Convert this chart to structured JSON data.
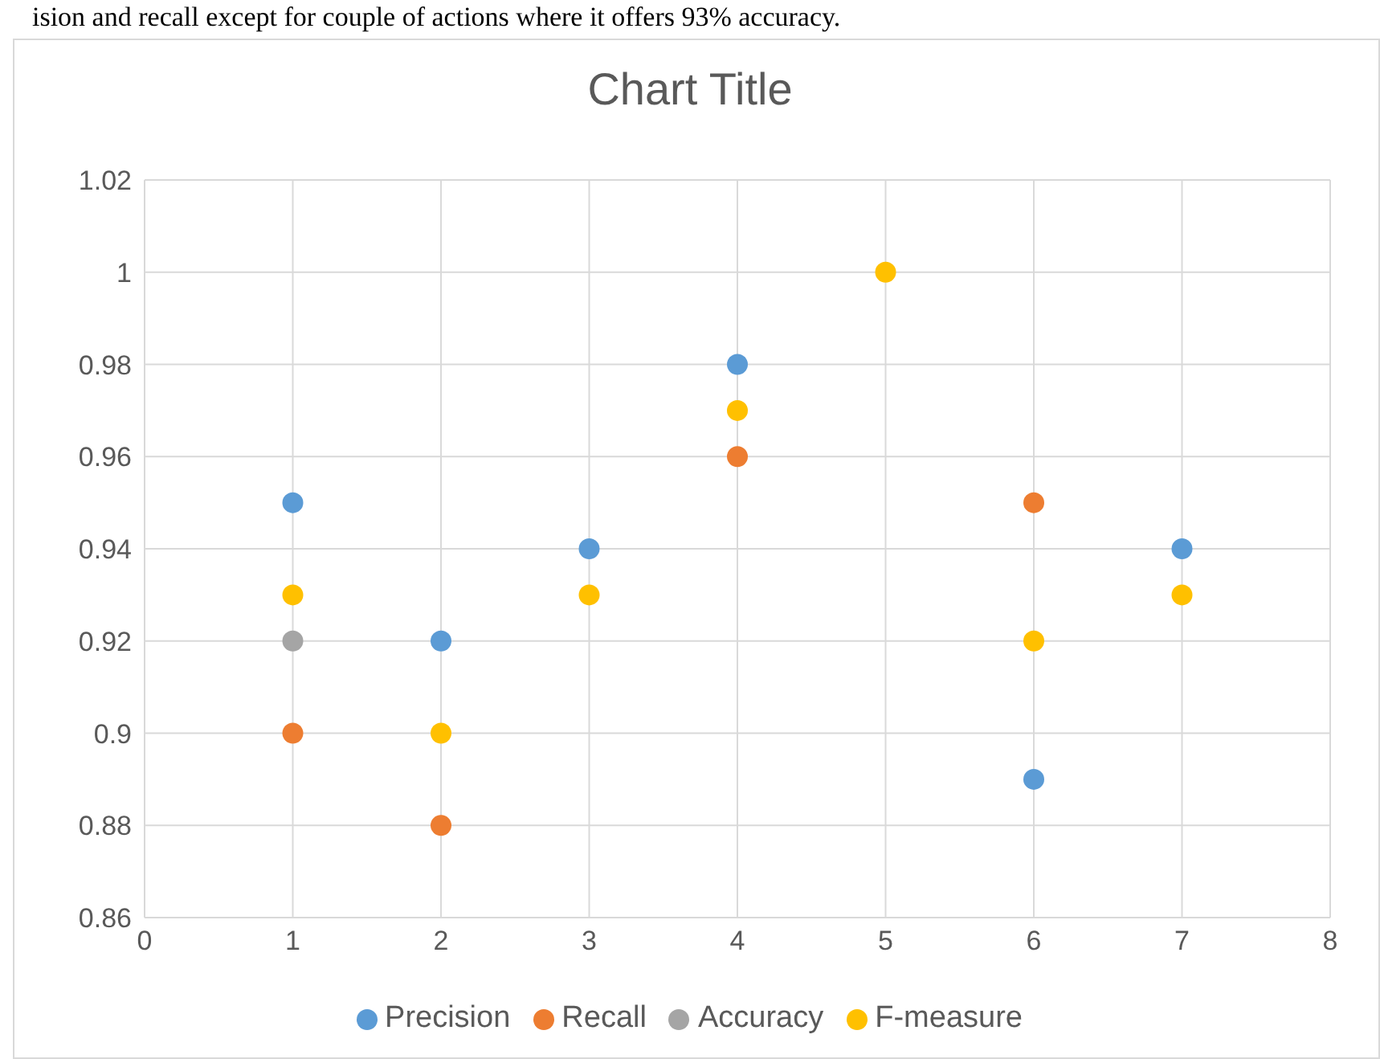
{
  "chart_data": {
    "type": "scatter",
    "title": "Chart Title",
    "annotations": [
      "ision and recall except for couple of actions where it offers 93% accuracy."
    ],
    "x": [
      1,
      2,
      3,
      4,
      5,
      6,
      7
    ],
    "series": [
      {
        "name": "Precision",
        "color": "#5b9bd5",
        "values": [
          0.95,
          0.92,
          0.94,
          0.98,
          null,
          0.89,
          0.94
        ]
      },
      {
        "name": "Recall",
        "color": "#ed7d31",
        "values": [
          0.9,
          0.88,
          null,
          0.96,
          null,
          0.95,
          null
        ]
      },
      {
        "name": "Accuracy",
        "color": "#a5a5a5",
        "values": [
          0.92,
          null,
          null,
          null,
          null,
          null,
          null
        ]
      },
      {
        "name": "F-measure",
        "color": "#ffc000",
        "values": [
          0.93,
          0.9,
          0.93,
          0.97,
          1,
          0.92,
          0.93
        ]
      }
    ],
    "xlim": [
      0,
      8
    ],
    "xticks": [
      0,
      1,
      2,
      3,
      4,
      5,
      6,
      7,
      8
    ],
    "ylim": [
      0.86,
      1.02
    ],
    "yticks": [
      0.86,
      0.88,
      0.9,
      0.92,
      0.94,
      0.96,
      0.98,
      1,
      1.02
    ],
    "grid": true,
    "legend": "bottom",
    "marker": "circle"
  }
}
